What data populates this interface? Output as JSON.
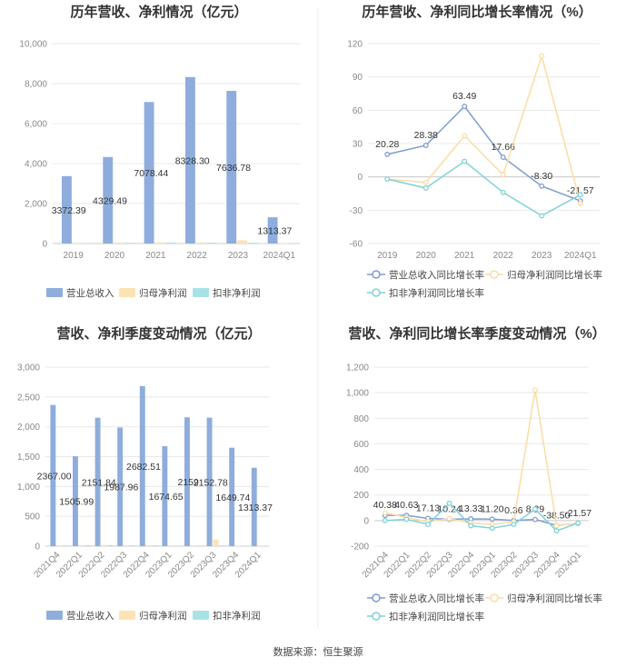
{
  "colors": {
    "revenue": "#8eaddc",
    "parent_profit": "#fde2b4",
    "deducted_profit": "#a9e2e6",
    "revenue_line": "#7f9ccf",
    "parent_line": "#fbdca5",
    "deducted_line": "#7fd2d8"
  },
  "source": "数据来源：恒生聚源",
  "chart_data": [
    {
      "id": "annual-bar",
      "type": "bar",
      "title": "历年营收、净利情况（亿元）",
      "categories": [
        "2019",
        "2020",
        "2021",
        "2022",
        "2023",
        "2024Q1"
      ],
      "ylim": [
        0,
        10000
      ],
      "yticks": [
        "0",
        "2,000",
        "4,000",
        "6,000",
        "8,000",
        "10,000"
      ],
      "series": [
        {
          "name": "营业总收入",
          "values": [
            3372.39,
            4329.49,
            7078.44,
            8328.3,
            7636.78,
            1313.37
          ],
          "labels": [
            "3372.39",
            "4329.49",
            "7078.44",
            "8328.30",
            "7636.78",
            "1313.37"
          ]
        },
        {
          "name": "归母净利润",
          "values": [
            30,
            45,
            60,
            50,
            160,
            20
          ]
        },
        {
          "name": "扣非净利润",
          "values": [
            25,
            35,
            50,
            45,
            40,
            18
          ]
        }
      ]
    },
    {
      "id": "annual-line",
      "type": "line",
      "title": "历年营收、净利同比增长率情况（%）",
      "categories": [
        "2019",
        "2020",
        "2021",
        "2022",
        "2023",
        "2024Q1"
      ],
      "ylim": [
        -60,
        120
      ],
      "yticks": [
        "-60",
        "-30",
        "0",
        "30",
        "60",
        "90",
        "120"
      ],
      "series": [
        {
          "name": "营业总收入同比增长率",
          "values": [
            20.28,
            28.38,
            63.49,
            17.66,
            -8.3,
            -21.57
          ],
          "labels": [
            "20.28",
            "28.38",
            "63.49",
            "17.66",
            "-8.30",
            "-21.57"
          ]
        },
        {
          "name": "归母净利润同比增长率",
          "values": [
            -2,
            -5,
            37,
            2,
            109,
            -24
          ]
        },
        {
          "name": "扣非净利润同比增长率",
          "values": [
            -2,
            -10,
            14,
            -14,
            -35,
            -16
          ]
        }
      ]
    },
    {
      "id": "quarter-bar",
      "type": "bar",
      "title": "营收、净利季度变动情况（亿元）",
      "categories": [
        "2021Q4",
        "2022Q1",
        "2022Q2",
        "2022Q3",
        "2022Q4",
        "2023Q1",
        "2023Q2",
        "2023Q3",
        "2023Q4",
        "2024Q1"
      ],
      "ylim": [
        0,
        3000
      ],
      "yticks": [
        "0",
        "500",
        "1,000",
        "1,500",
        "2,000",
        "2,500",
        "3,000"
      ],
      "series": [
        {
          "name": "营业总收入",
          "values": [
            2367.0,
            1505.99,
            2151.84,
            1987.96,
            2682.51,
            1674.65,
            2159.0,
            2152.78,
            1649.74,
            1313.37
          ],
          "labels": [
            "2367.00",
            "1505.99",
            "2151.84",
            "1987.96",
            "2682.51",
            "1674.65",
            "2159",
            "2152.78",
            "1649.74",
            "1313.37"
          ]
        },
        {
          "name": "归母净利润",
          "values": [
            15,
            18,
            20,
            15,
            15,
            12,
            12,
            110,
            8,
            10
          ]
        },
        {
          "name": "扣非净利润",
          "values": [
            12,
            15,
            18,
            13,
            14,
            10,
            10,
            12,
            6,
            8
          ]
        }
      ]
    },
    {
      "id": "quarter-line",
      "type": "line",
      "title": "营收、净利同比增长率季度变动情况（%）",
      "categories": [
        "2021Q4",
        "2022Q1",
        "2022Q2",
        "2022Q3",
        "2022Q4",
        "2023Q1",
        "2023Q2",
        "2023Q3",
        "2023Q4",
        "2024Q1"
      ],
      "ylim": [
        -200,
        1200
      ],
      "yticks": [
        "-200",
        "0",
        "200",
        "400",
        "600",
        "800",
        "1,000",
        "1,200"
      ],
      "series": [
        {
          "name": "营业总收入同比增长率",
          "values": [
            40.38,
            40.63,
            17.13,
            10.24,
            13.33,
            11.2,
            0.36,
            8.29,
            -38.5,
            -21.57
          ],
          "labels": [
            "40.38",
            "40.63",
            "17.13",
            "10.24",
            "13.33",
            "11.20",
            "0.36",
            "8.29",
            "-38.50",
            "-21.57"
          ]
        },
        {
          "name": "归母净利润同比增长率",
          "values": [
            60,
            25,
            -10,
            15,
            -20,
            -30,
            -10,
            1020,
            -40,
            -20
          ]
        },
        {
          "name": "扣非净利润同比增长率",
          "values": [
            0,
            10,
            -30,
            135,
            -40,
            -60,
            -30,
            90,
            -80,
            -20
          ]
        }
      ]
    }
  ]
}
